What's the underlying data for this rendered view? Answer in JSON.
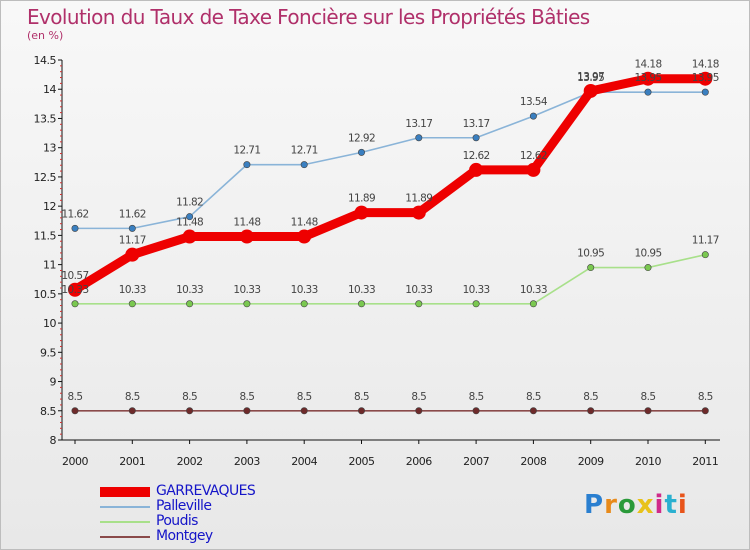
{
  "chart_data": {
    "type": "line",
    "title": "Evolution du Taux de Taxe Foncière sur les Propriétés Bâties",
    "subtitle": "(en %)",
    "xlabel": "",
    "ylabel": "",
    "categories": [
      "2000",
      "2001",
      "2002",
      "2003",
      "2004",
      "2005",
      "2006",
      "2007",
      "2008",
      "2009",
      "2010",
      "2011"
    ],
    "ylim": [
      8,
      14.5
    ],
    "yticks": [
      "8",
      "8.5",
      "9",
      "9.5",
      "10",
      "10.5",
      "11",
      "11.5",
      "12",
      "12.5",
      "13",
      "13.5",
      "14",
      "14.5"
    ],
    "grid": false,
    "legend_position": "bottom-left",
    "series": [
      {
        "name": "GARREVAQUES",
        "color": "#ee0000",
        "marker": "#ee0000",
        "values": [
          10.57,
          11.17,
          11.48,
          11.48,
          11.48,
          11.89,
          11.89,
          12.62,
          12.62,
          13.97,
          14.18,
          14.18
        ],
        "labels": [
          "10.57",
          "11.17",
          "11.48",
          "11.48",
          "11.48",
          "11.89",
          "11.89",
          "12.62",
          "12.62",
          "13.97",
          "14.18",
          "14.18"
        ]
      },
      {
        "name": "Palleville",
        "color": "#8ab4d8",
        "marker": "#3a7fc0",
        "values": [
          11.62,
          11.62,
          11.82,
          12.71,
          12.71,
          12.92,
          13.17,
          13.17,
          13.54,
          13.95,
          13.95,
          13.95
        ],
        "labels": [
          "11.62",
          "11.62",
          "11.82",
          "12.71",
          "12.71",
          "12.92",
          "13.17",
          "13.17",
          "13.54",
          "13.95",
          "13.95",
          "13.95"
        ]
      },
      {
        "name": "Poudis",
        "color": "#a8e08a",
        "marker": "#7ac850",
        "values": [
          10.33,
          10.33,
          10.33,
          10.33,
          10.33,
          10.33,
          10.33,
          10.33,
          10.33,
          10.95,
          10.95,
          11.17
        ],
        "labels": [
          "10.33",
          "10.33",
          "10.33",
          "10.33",
          "10.33",
          "10.33",
          "10.33",
          "10.33",
          "10.33",
          "10.95",
          "10.95",
          "11.17"
        ]
      },
      {
        "name": "Montgey",
        "color": "#8a4a4a",
        "marker": "#6e2a2a",
        "values": [
          8.5,
          8.5,
          8.5,
          8.5,
          8.5,
          8.5,
          8.5,
          8.5,
          8.5,
          8.5,
          8.5,
          8.5
        ],
        "labels": [
          "8.5",
          "8.5",
          "8.5",
          "8.5",
          "8.5",
          "8.5",
          "8.5",
          "8.5",
          "8.5",
          "8.5",
          "8.5",
          "8.5"
        ]
      }
    ]
  },
  "logo": {
    "text": "Proxiti",
    "letters": [
      "P",
      "r",
      "o",
      "x",
      "i",
      "t",
      "i"
    ],
    "colors": [
      "#2a7fd0",
      "#e88a1a",
      "#2a9a3a",
      "#e8c21a",
      "#d02a8a",
      "#2ab0d0",
      "#e8541a"
    ]
  }
}
